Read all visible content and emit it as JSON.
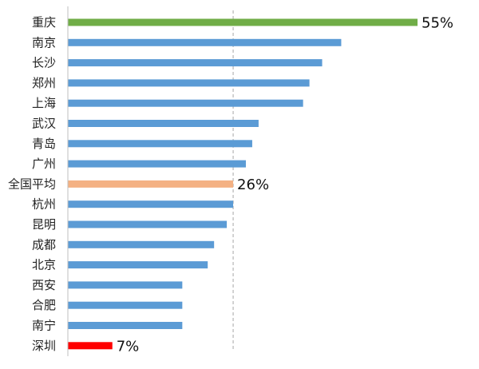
{
  "chart_data": {
    "type": "bar",
    "orientation": "horizontal",
    "categories": [
      "重庆",
      "南京",
      "长沙",
      "郑州",
      "上海",
      "武汉",
      "青岛",
      "广州",
      "全国平均",
      "杭州",
      "昆明",
      "成都",
      "北京",
      "西安",
      "合肥",
      "南宁",
      "深圳"
    ],
    "values": [
      55,
      43,
      40,
      38,
      37,
      30,
      29,
      28,
      26,
      26,
      25,
      23,
      22,
      18,
      18,
      18,
      7
    ],
    "highlight": {
      "max_category": "重庆",
      "average_category": "全国平均",
      "min_category": "深圳"
    },
    "data_labels": [
      {
        "category": "重庆",
        "text": "55%"
      },
      {
        "category": "全国平均",
        "text": "26%"
      },
      {
        "category": "深圳",
        "text": "7%"
      }
    ],
    "reference_line": {
      "value": 26,
      "style": "dashed"
    },
    "xlim": [
      0,
      60
    ],
    "legend": "none",
    "grid": false,
    "colors": {
      "default": "#5b9bd5",
      "max": "#70ad47",
      "average": "#f4b183",
      "min": "#ff0000",
      "axis": "#bfbfbf",
      "reference_line": "#a6a6a6"
    }
  }
}
